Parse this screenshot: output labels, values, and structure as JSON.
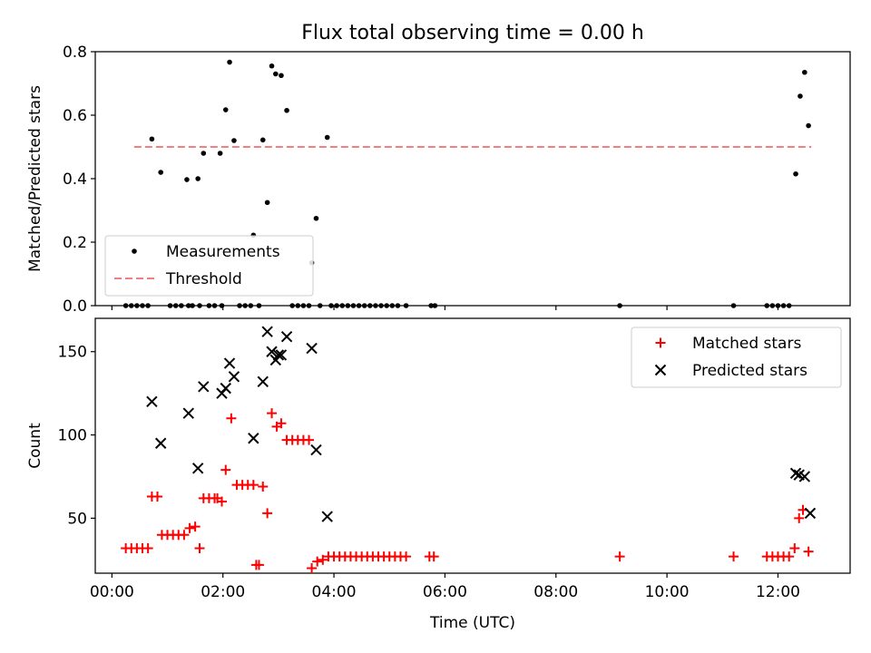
{
  "title": "Flux total observing time = 0.00 h",
  "colors": {
    "black": "#000000",
    "red": "#ff0000",
    "threshold": "#f08080",
    "frame": "#000000",
    "legend_border": "#cccccc"
  },
  "chart_data": [
    {
      "type": "scatter",
      "ylabel": "Matched/Predicted stars",
      "xlabel": "",
      "xlim": [
        -0.3,
        13.3
      ],
      "ylim": [
        0,
        0.8
      ],
      "yticks": [
        0,
        0.2,
        0.4,
        0.6,
        0.8
      ],
      "ytick_labels": [
        "0.0",
        "0.2",
        "0.4",
        "0.6",
        "0.8"
      ],
      "grid": false,
      "legend": {
        "position": "lower-left"
      },
      "series": [
        {
          "name": "Measurements",
          "kind": "points",
          "color": "#000000",
          "x": [
            0.25,
            0.35,
            0.45,
            0.55,
            0.65,
            0.72,
            0.88,
            1.05,
            1.15,
            1.25,
            1.35,
            1.38,
            1.45,
            1.55,
            1.58,
            1.65,
            1.75,
            1.85,
            1.95,
            1.98,
            2.05,
            2.12,
            2.2,
            2.3,
            2.4,
            2.5,
            2.55,
            2.65,
            2.72,
            2.8,
            2.88,
            2.95,
            3.05,
            3.15,
            3.25,
            3.35,
            3.45,
            3.55,
            3.6,
            3.68,
            3.75,
            3.88,
            3.95,
            4.05,
            4.15,
            4.25,
            4.35,
            4.45,
            4.55,
            4.65,
            4.75,
            4.85,
            4.95,
            5.05,
            5.15,
            5.3,
            5.75,
            5.82,
            9.15,
            11.2,
            11.8,
            11.9,
            12.0,
            12.1,
            12.2,
            12.32,
            12.4,
            12.48,
            12.55
          ],
          "y": [
            0,
            0,
            0,
            0,
            0,
            0.525,
            0.42,
            0,
            0,
            0,
            0.397,
            0,
            0,
            0.4,
            0,
            0.48,
            0,
            0,
            0.48,
            0,
            0.617,
            0.767,
            0.52,
            0,
            0,
            0,
            0.222,
            0,
            0.522,
            0.325,
            0.755,
            0.73,
            0.725,
            0.615,
            0,
            0,
            0,
            0,
            0.135,
            0.275,
            0,
            0.53,
            0,
            0,
            0,
            0,
            0,
            0,
            0,
            0,
            0,
            0,
            0,
            0,
            0,
            0,
            0,
            0,
            0,
            0,
            0,
            0,
            0,
            0,
            0,
            0.415,
            0.66,
            0.735,
            0.567
          ]
        },
        {
          "name": "Threshold",
          "kind": "dashed-line",
          "color": "#f08080",
          "x": [
            0.4,
            12.6
          ],
          "y": [
            0.5,
            0.5
          ]
        }
      ]
    },
    {
      "type": "scatter",
      "ylabel": "Count",
      "xlabel": "Time (UTC)",
      "xlim": [
        -0.3,
        13.3
      ],
      "ylim": [
        17,
        170
      ],
      "yticks": [
        50,
        100,
        150
      ],
      "ytick_labels": [
        "50",
        "100",
        "150"
      ],
      "xticks": [
        0,
        2,
        4,
        6,
        8,
        10,
        12
      ],
      "xtick_labels": [
        "00:00",
        "02:00",
        "04:00",
        "06:00",
        "08:00",
        "10:00",
        "12:00"
      ],
      "grid": false,
      "legend": {
        "position": "top-right"
      },
      "series": [
        {
          "name": "Matched stars",
          "kind": "plus",
          "color": "#ff0000",
          "x": [
            0.25,
            0.35,
            0.45,
            0.55,
            0.65,
            0.72,
            0.82,
            0.9,
            1.0,
            1.1,
            1.2,
            1.3,
            1.4,
            1.5,
            1.58,
            1.65,
            1.75,
            1.85,
            1.9,
            1.98,
            2.05,
            2.15,
            2.25,
            2.35,
            2.45,
            2.55,
            2.6,
            2.65,
            2.72,
            2.8,
            2.88,
            2.97,
            3.05,
            3.15,
            3.25,
            3.35,
            3.45,
            3.55,
            3.6,
            3.7,
            3.8,
            3.9,
            4.0,
            4.1,
            4.2,
            4.3,
            4.4,
            4.5,
            4.6,
            4.7,
            4.8,
            4.9,
            5.0,
            5.1,
            5.2,
            5.3,
            5.72,
            5.8,
            9.15,
            11.2,
            11.8,
            11.9,
            12.0,
            12.1,
            12.2,
            12.3,
            12.38,
            12.45,
            12.55
          ],
          "y": [
            32,
            32,
            32,
            32,
            32,
            63,
            63,
            40,
            40,
            40,
            40,
            40,
            44,
            45,
            32,
            62,
            62,
            62,
            62,
            60,
            79,
            110,
            70,
            70,
            70,
            70,
            22,
            22,
            69,
            53,
            113,
            105,
            107,
            97,
            97,
            97,
            97,
            97,
            20,
            24,
            25,
            27,
            27,
            27,
            27,
            27,
            27,
            27,
            27,
            27,
            27,
            27,
            27,
            27,
            27,
            27,
            27,
            27,
            27,
            27,
            27,
            27,
            27,
            27,
            27,
            32,
            50,
            55,
            30
          ]
        },
        {
          "name": "Predicted stars",
          "kind": "x",
          "color": "#000000",
          "x": [
            0.72,
            0.88,
            1.38,
            1.55,
            1.65,
            1.98,
            2.05,
            2.12,
            2.2,
            2.55,
            2.72,
            2.8,
            2.88,
            2.95,
            3.0,
            3.05,
            3.15,
            3.6,
            3.68,
            3.88,
            12.32,
            12.38,
            12.48,
            12.58
          ],
          "y": [
            120,
            95,
            113,
            80,
            129,
            125,
            128,
            143,
            135,
            98,
            132,
            162,
            150,
            145,
            148,
            148,
            159,
            152,
            91,
            51,
            77,
            76,
            75,
            53
          ]
        }
      ]
    }
  ]
}
